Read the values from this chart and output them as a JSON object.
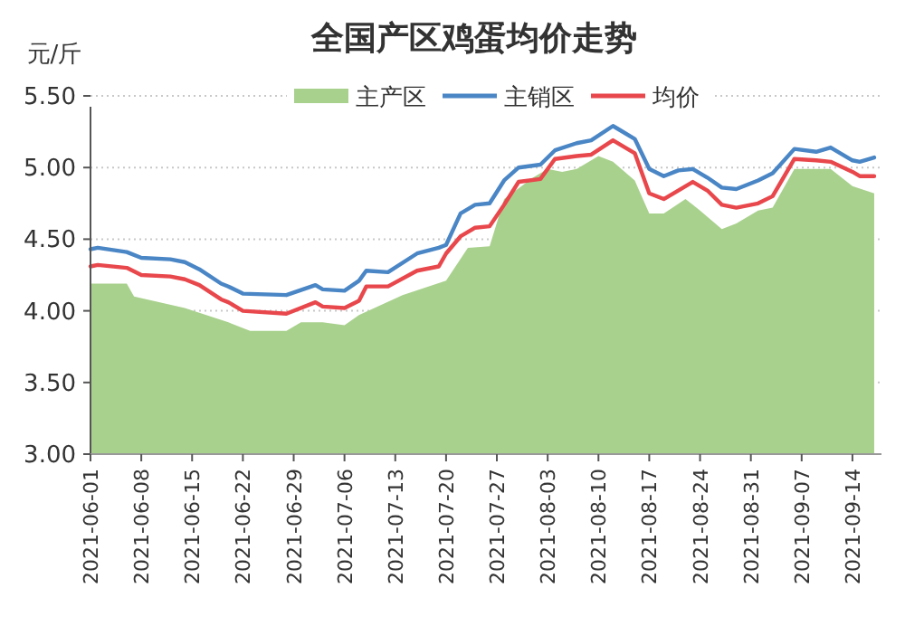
{
  "chart_data": {
    "type": "line",
    "title": "全国产区鸡蛋均价走势",
    "ylabel": "元/斤",
    "ylim": [
      3.0,
      5.5
    ],
    "yticks": [
      {
        "value": 3.0,
        "label": "3.00"
      },
      {
        "value": 3.5,
        "label": "3.50"
      },
      {
        "value": 4.0,
        "label": "4.00"
      },
      {
        "value": 4.5,
        "label": "4.50"
      },
      {
        "value": 5.0,
        "label": "5.00"
      },
      {
        "value": 5.5,
        "label": "5.50"
      }
    ],
    "xlim": [
      "2021-06-01",
      "2021-09-18"
    ],
    "xticks": [
      "2021-06-01",
      "2021-06-08",
      "2021-06-15",
      "2021-06-22",
      "2021-06-29",
      "2021-07-06",
      "2021-07-13",
      "2021-07-20",
      "2021-07-27",
      "2021-08-03",
      "2021-08-10",
      "2021-08-17",
      "2021-08-24",
      "2021-08-31",
      "2021-09-07",
      "2021-09-14"
    ],
    "grid": "y",
    "legend": "top",
    "series": [
      {
        "name": "主产区",
        "type": "area",
        "color": "#a9d18e",
        "x": [
          "2021-06-01",
          "2021-06-06",
          "2021-06-07",
          "2021-06-14",
          "2021-06-20",
          "2021-06-23",
          "2021-06-28",
          "2021-06-30",
          "2021-07-03",
          "2021-07-06",
          "2021-07-08",
          "2021-07-14",
          "2021-07-20",
          "2021-07-23",
          "2021-07-26",
          "2021-07-28",
          "2021-08-01",
          "2021-08-03",
          "2021-08-05",
          "2021-08-07",
          "2021-08-10",
          "2021-08-12",
          "2021-08-15",
          "2021-08-17",
          "2021-08-19",
          "2021-08-22",
          "2021-08-24",
          "2021-08-27",
          "2021-08-29",
          "2021-09-01",
          "2021-09-03",
          "2021-09-06",
          "2021-09-11",
          "2021-09-14",
          "2021-09-17"
        ],
        "values": [
          4.19,
          4.19,
          4.1,
          4.02,
          3.92,
          3.86,
          3.86,
          3.92,
          3.92,
          3.9,
          3.97,
          4.11,
          4.21,
          4.44,
          4.45,
          4.78,
          4.93,
          4.99,
          4.97,
          4.99,
          5.08,
          5.04,
          4.91,
          4.68,
          4.68,
          4.78,
          4.7,
          4.57,
          4.61,
          4.7,
          4.72,
          4.99,
          4.99,
          4.87,
          4.82
        ]
      },
      {
        "name": "主销区",
        "color": "#4a86c5",
        "x": [
          "2021-06-01",
          "2021-06-02",
          "2021-06-06",
          "2021-06-08",
          "2021-06-12",
          "2021-06-14",
          "2021-06-16",
          "2021-06-19",
          "2021-06-20",
          "2021-06-22",
          "2021-06-28",
          "2021-07-02",
          "2021-07-03",
          "2021-07-06",
          "2021-07-08",
          "2021-07-09",
          "2021-07-12",
          "2021-07-16",
          "2021-07-19",
          "2021-07-20",
          "2021-07-22",
          "2021-07-24",
          "2021-07-26",
          "2021-07-28",
          "2021-07-30",
          "2021-08-02",
          "2021-08-04",
          "2021-08-07",
          "2021-08-09",
          "2021-08-12",
          "2021-08-13",
          "2021-08-15",
          "2021-08-17",
          "2021-08-19",
          "2021-08-21",
          "2021-08-23",
          "2021-08-25",
          "2021-08-27",
          "2021-08-29",
          "2021-09-01",
          "2021-09-03",
          "2021-09-06",
          "2021-09-09",
          "2021-09-11",
          "2021-09-14",
          "2021-09-15",
          "2021-09-17"
        ],
        "values": [
          4.43,
          4.44,
          4.41,
          4.37,
          4.36,
          4.34,
          4.29,
          4.19,
          4.17,
          4.12,
          4.11,
          4.18,
          4.15,
          4.14,
          4.21,
          4.28,
          4.27,
          4.4,
          4.44,
          4.46,
          4.68,
          4.74,
          4.75,
          4.91,
          5.0,
          5.02,
          5.12,
          5.17,
          5.19,
          5.29,
          5.26,
          5.2,
          4.99,
          4.94,
          4.98,
          4.99,
          4.93,
          4.86,
          4.85,
          4.91,
          4.96,
          5.13,
          5.11,
          5.14,
          5.05,
          5.04,
          5.07
        ]
      },
      {
        "name": "均价",
        "color": "#e8474c",
        "x": [
          "2021-06-01",
          "2021-06-02",
          "2021-06-06",
          "2021-06-08",
          "2021-06-12",
          "2021-06-14",
          "2021-06-16",
          "2021-06-19",
          "2021-06-20",
          "2021-06-22",
          "2021-06-28",
          "2021-07-02",
          "2021-07-03",
          "2021-07-06",
          "2021-07-08",
          "2021-07-09",
          "2021-07-12",
          "2021-07-16",
          "2021-07-19",
          "2021-07-20",
          "2021-07-22",
          "2021-07-24",
          "2021-07-26",
          "2021-07-28",
          "2021-07-30",
          "2021-08-02",
          "2021-08-04",
          "2021-08-07",
          "2021-08-09",
          "2021-08-12",
          "2021-08-13",
          "2021-08-15",
          "2021-08-17",
          "2021-08-19",
          "2021-08-21",
          "2021-08-23",
          "2021-08-25",
          "2021-08-27",
          "2021-08-29",
          "2021-09-01",
          "2021-09-03",
          "2021-09-06",
          "2021-09-09",
          "2021-09-11",
          "2021-09-14",
          "2021-09-15",
          "2021-09-17"
        ],
        "values": [
          4.31,
          4.32,
          4.3,
          4.25,
          4.24,
          4.22,
          4.18,
          4.08,
          4.06,
          4.0,
          3.98,
          4.06,
          4.03,
          4.02,
          4.07,
          4.17,
          4.17,
          4.28,
          4.31,
          4.4,
          4.52,
          4.58,
          4.59,
          4.74,
          4.9,
          4.92,
          5.06,
          5.08,
          5.09,
          5.19,
          5.16,
          5.1,
          4.82,
          4.78,
          4.84,
          4.9,
          4.84,
          4.74,
          4.72,
          4.75,
          4.8,
          5.06,
          5.05,
          5.04,
          4.97,
          4.94,
          4.94
        ]
      }
    ]
  }
}
